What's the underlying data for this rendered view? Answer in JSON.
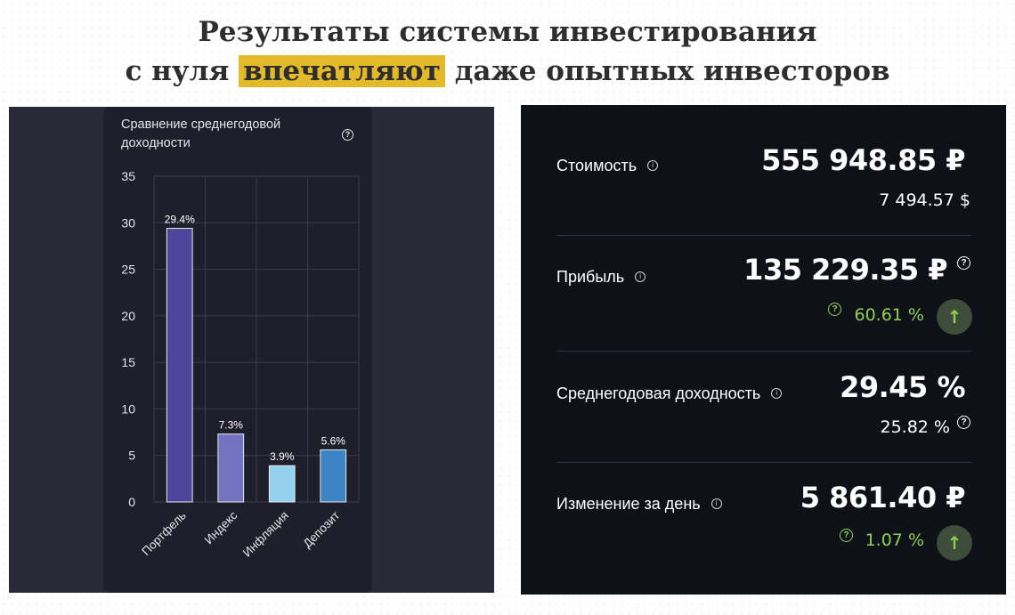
{
  "headline": {
    "line1": "Результаты системы инвестирования",
    "line2_prefix": "с нуля ",
    "line2_highlight": "впечатляют",
    "line2_suffix": " даже опытных инвесторов"
  },
  "chart_card": {
    "title": "Сравнение среднегодовой доходности",
    "help_icon": "question-circle-icon"
  },
  "chart_data": {
    "type": "bar",
    "title": "Сравнение среднегодовой доходности",
    "categories": [
      "Портфель",
      "Индекс",
      "Инфляция",
      "Депозит"
    ],
    "values": [
      29.4,
      7.3,
      3.9,
      5.6
    ],
    "value_labels": [
      "29.4%",
      "7.3%",
      "3.9%",
      "5.6%"
    ],
    "colors": [
      "#4d469a",
      "#7272c0",
      "#93d1ee",
      "#3c84c3"
    ],
    "ylim": [
      0,
      35
    ],
    "yticks": [
      0,
      5,
      10,
      15,
      20,
      25,
      30,
      35
    ],
    "grid": true,
    "xlabel": "",
    "ylabel": ""
  },
  "stats": {
    "value": {
      "label": "Стоимость",
      "amount": "555 948.85 ₽",
      "sub": "7 494.57 $"
    },
    "profit": {
      "label": "Прибыль",
      "amount": "135 229.35 ₽",
      "percent": "60.61 %",
      "trend_icon": "arrow-up-icon"
    },
    "annual": {
      "label": "Среднегодовая доходность",
      "amount": "29.45 %",
      "sub": "25.82 %"
    },
    "day": {
      "label": "Изменение за день",
      "amount": "5 861.40 ₽",
      "percent": "1.07 %",
      "trend_icon": "arrow-up-icon"
    }
  },
  "colors": {
    "accent_yellow": "#e3bb2a",
    "positive_green": "#8fd14f",
    "right_bg": "#0f1119",
    "left_bg": "#282a38"
  }
}
